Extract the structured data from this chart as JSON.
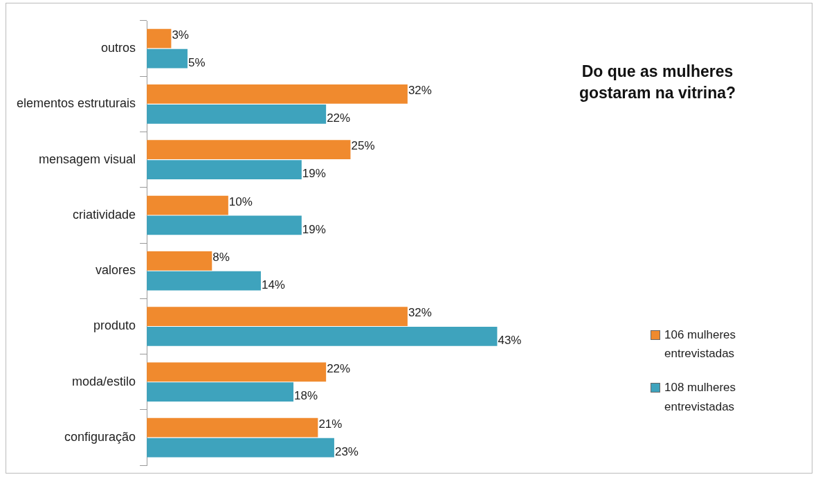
{
  "chart_data": {
    "type": "bar",
    "orientation": "horizontal",
    "title": "Do que as mulheres gostaram na vitrina?",
    "categories": [
      "outros",
      "elementos estruturais",
      "mensagem visual",
      "criatividade",
      "valores",
      "produto",
      "moda/estilo",
      "configuração"
    ],
    "series": [
      {
        "name": "106 mulheres entrevistadas",
        "color": "#f08a2e",
        "values": [
          3,
          32,
          25,
          10,
          8,
          32,
          22,
          21
        ],
        "value_labels": [
          "3%",
          "32%",
          "25%",
          "10%",
          "8%",
          "32%",
          "22%",
          "21%"
        ]
      },
      {
        "name": "108 mulheres entrevistadas",
        "color": "#3ea3bd",
        "values": [
          5,
          22,
          19,
          19,
          14,
          43,
          18,
          23
        ],
        "value_labels": [
          "5%",
          "22%",
          "19%",
          "19%",
          "14%",
          "43%",
          "18%",
          "23%"
        ]
      }
    ],
    "tick_labels": "y",
    "grid": false,
    "legend": "right"
  }
}
